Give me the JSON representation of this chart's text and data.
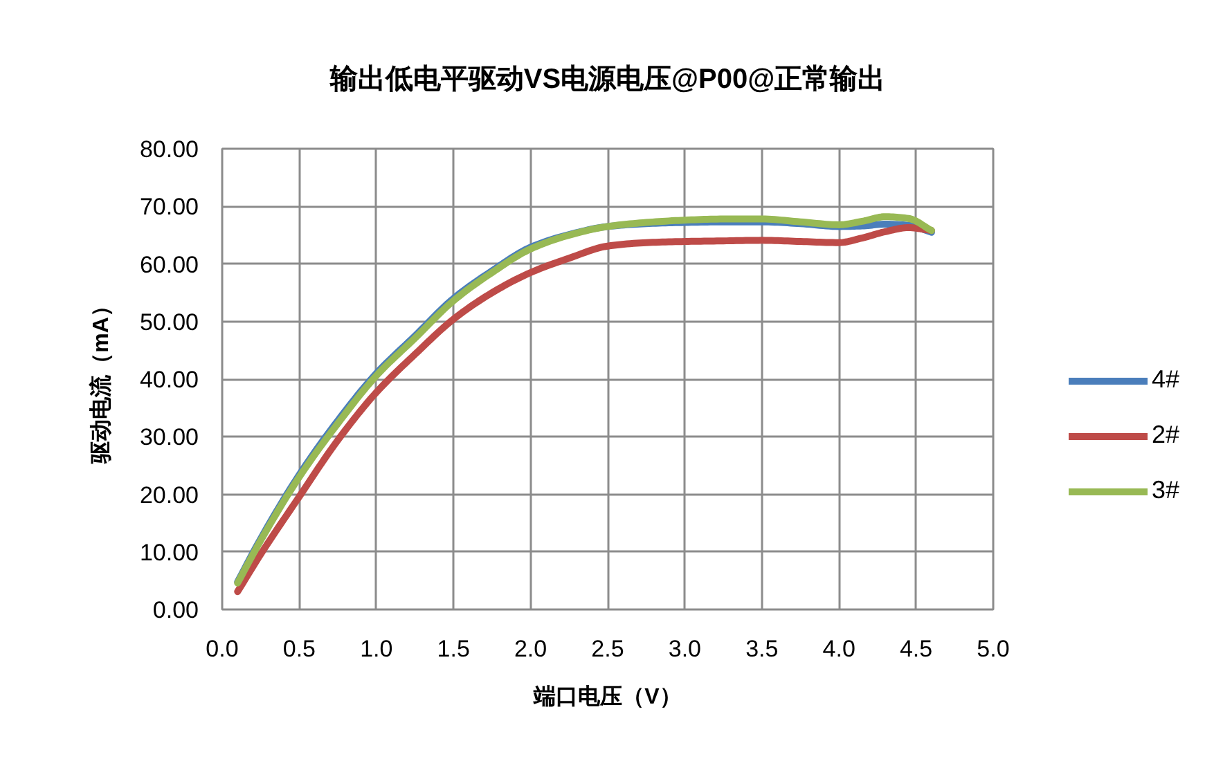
{
  "chart_data": {
    "type": "line",
    "title": "输出低电平驱动VS电源电压@P00@正常输出",
    "xlabel": "端口电压（V）",
    "ylabel": "驱动电流（mA）",
    "x": [
      0.1,
      0.25,
      0.5,
      0.75,
      1.0,
      1.25,
      1.5,
      1.75,
      2.0,
      2.25,
      2.5,
      2.75,
      3.0,
      3.25,
      3.5,
      3.75,
      4.0,
      4.15,
      4.3,
      4.45,
      4.6
    ],
    "series": [
      {
        "name": "4#",
        "color": "#4a7ebb",
        "values": [
          4.8,
          12.3,
          23.4,
          32.8,
          41.0,
          47.5,
          54.0,
          58.8,
          62.9,
          65.1,
          66.5,
          67.0,
          67.2,
          67.3,
          67.3,
          67.0,
          66.5,
          66.6,
          66.9,
          66.7,
          65.5
        ]
      },
      {
        "name": "2#",
        "color": "#be4b48",
        "values": [
          3.1,
          9.6,
          19.6,
          29.4,
          37.7,
          44.3,
          50.4,
          55.0,
          58.5,
          61.0,
          63.1,
          63.7,
          63.9,
          64.0,
          64.1,
          63.9,
          63.7,
          64.5,
          65.6,
          66.3,
          65.8
        ]
      },
      {
        "name": "3#",
        "color": "#98b954",
        "values": [
          4.6,
          12.0,
          23.0,
          32.3,
          40.6,
          47.1,
          53.6,
          58.5,
          62.6,
          65.0,
          66.5,
          67.2,
          67.6,
          67.8,
          67.8,
          67.3,
          66.8,
          67.4,
          68.2,
          67.9,
          65.8
        ]
      }
    ],
    "xlim": [
      0,
      5
    ],
    "ylim": [
      0,
      80
    ],
    "xticks": [
      {
        "value": 0,
        "label": "0.0"
      },
      {
        "value": 0.5,
        "label": "0.5"
      },
      {
        "value": 1,
        "label": "1.0"
      },
      {
        "value": 1.5,
        "label": "1.5"
      },
      {
        "value": 2,
        "label": "2.0"
      },
      {
        "value": 2.5,
        "label": "2.5"
      },
      {
        "value": 3,
        "label": "3.0"
      },
      {
        "value": 3.5,
        "label": "3.5"
      },
      {
        "value": 4,
        "label": "4.0"
      },
      {
        "value": 4.5,
        "label": "4.5"
      },
      {
        "value": 5,
        "label": "5.0"
      }
    ],
    "yticks": [
      {
        "value": 0,
        "label": "0.00"
      },
      {
        "value": 10,
        "label": "10.00"
      },
      {
        "value": 20,
        "label": "20.00"
      },
      {
        "value": 30,
        "label": "30.00"
      },
      {
        "value": 40,
        "label": "40.00"
      },
      {
        "value": 50,
        "label": "50.00"
      },
      {
        "value": 60,
        "label": "60.00"
      },
      {
        "value": 70,
        "label": "70.00"
      },
      {
        "value": 80,
        "label": "80.00"
      }
    ],
    "grid": true,
    "legend": "right",
    "line_style": "solid"
  }
}
